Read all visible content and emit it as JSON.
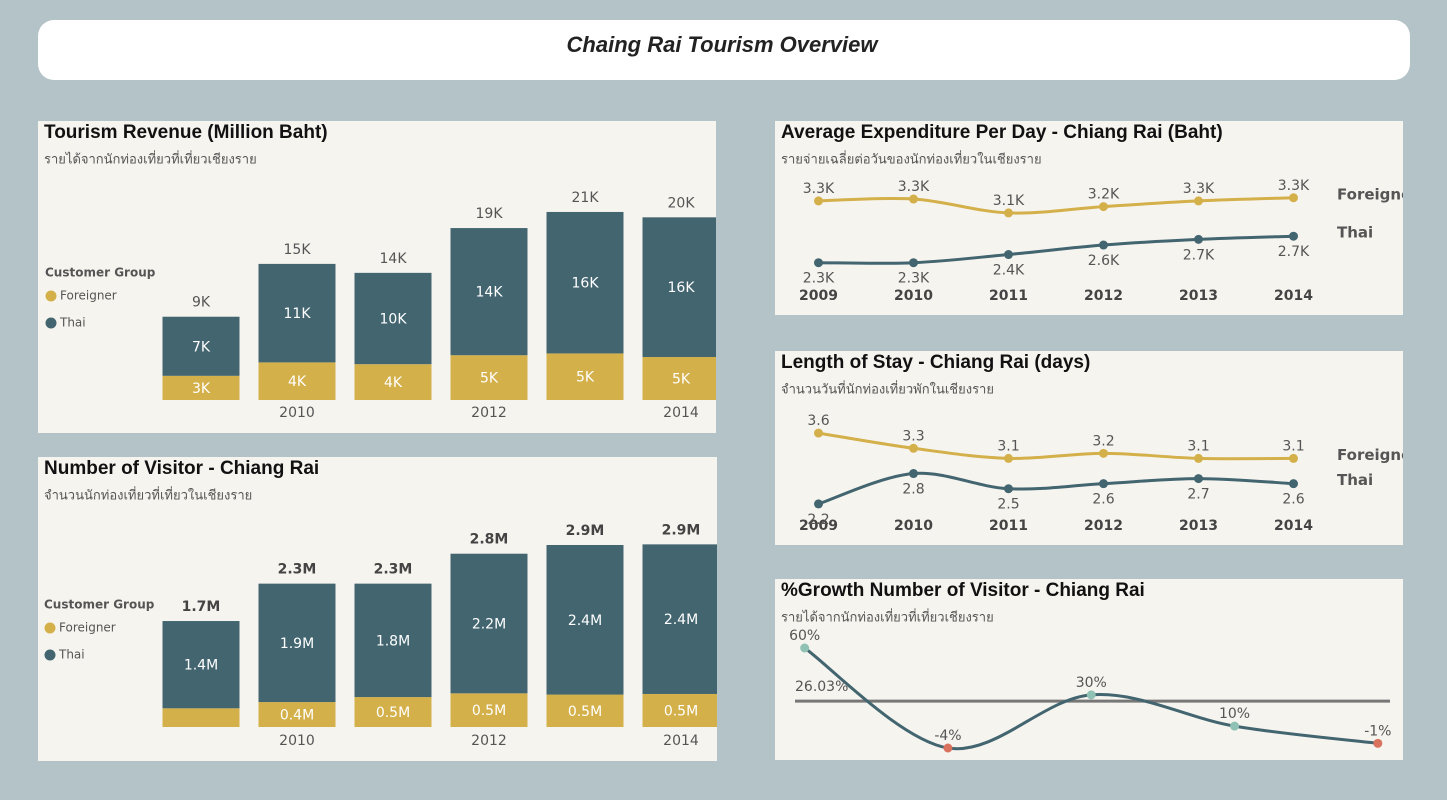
{
  "title": "Chaing Rai Tourism Overview",
  "chart_data": [
    {
      "type": "bar",
      "stacked": true,
      "title": "Tourism Revenue (Million Baht)",
      "subtitle": "รายได้จากนักท่องเที่ยวที่เที่ยวเชียงราย",
      "categories": [
        null,
        "2010",
        null,
        "2012",
        null,
        "2014"
      ],
      "legend_title": "Customer Group",
      "series": [
        {
          "name": "Foreigner",
          "color": "#d4b04a",
          "values": [
            2700,
            4200,
            4000,
            5000,
            5200,
            4800
          ],
          "value_labels": [
            "3K",
            "4K",
            "4K",
            "5K",
            "5K",
            "5K"
          ]
        },
        {
          "name": "Thai",
          "color": "#426570",
          "values": [
            6600,
            11000,
            10200,
            14200,
            15800,
            15600
          ],
          "value_labels": [
            "7K",
            "11K",
            "10K",
            "14K",
            "16K",
            "16K"
          ]
        }
      ],
      "totals": [
        9300,
        15200,
        14200,
        19200,
        21000,
        20400
      ],
      "total_labels": [
        "9K",
        "15K",
        "14K",
        "19K",
        "21K",
        "20K"
      ],
      "ylim": [
        0,
        22000
      ]
    },
    {
      "type": "bar",
      "stacked": true,
      "title": "Number of Visitor - Chiang Rai",
      "subtitle": "จำนวนนักท่องเที่ยวที่เที่ยวในเชียงราย",
      "categories": [
        null,
        "2010",
        null,
        "2012",
        null,
        "2014"
      ],
      "legend_title": "Customer Group",
      "series": [
        {
          "name": "Foreigner",
          "color": "#d4b04a",
          "values": [
            300000,
            400000,
            480000,
            540000,
            520000,
            530000
          ],
          "value_labels": [
            null,
            "0.4M",
            "0.5M",
            "0.5M",
            "0.5M",
            "0.5M"
          ]
        },
        {
          "name": "Thai",
          "color": "#426570",
          "values": [
            1400000,
            1900000,
            1820000,
            2240000,
            2400000,
            2400000
          ],
          "value_labels": [
            "1.4M",
            "1.9M",
            "1.8M",
            "2.2M",
            "2.4M",
            "2.4M"
          ]
        }
      ],
      "totals": [
        1700000,
        2300000,
        2300000,
        2780000,
        2920000,
        2930000
      ],
      "total_labels": [
        "1.7M",
        "2.3M",
        "2.3M",
        "2.8M",
        "2.9M",
        "2.9M"
      ],
      "ylim": [
        0,
        3000000
      ]
    },
    {
      "type": "line",
      "title": "Average Expenditure Per Day - Chiang Rai (Baht)",
      "subtitle": "รายจ่ายเฉลี่ยต่อวันของนักท่องเที่ยวในเชียงราย",
      "categories": [
        "2009",
        "2010",
        "2011",
        "2012",
        "2013",
        "2014"
      ],
      "series": [
        {
          "name": "Foreigner",
          "color": "#d4b04a",
          "values": [
            3270,
            3300,
            3080,
            3180,
            3270,
            3320
          ],
          "value_labels": [
            "3.3K",
            "3.3K",
            "3.1K",
            "3.2K",
            "3.3K",
            "3.3K"
          ]
        },
        {
          "name": "Thai",
          "color": "#426570",
          "values": [
            2290,
            2290,
            2420,
            2570,
            2660,
            2710
          ],
          "value_labels": [
            "2.3K",
            "2.3K",
            "2.4K",
            "2.6K",
            "2.7K",
            "2.7K"
          ]
        }
      ],
      "ylim": [
        2000,
        3500
      ]
    },
    {
      "type": "line",
      "title": "Length of Stay - Chiang Rai (days)",
      "subtitle": "จำนวนวันที่นักท่องเที่ยวพักในเชียงราย",
      "categories": [
        "2009",
        "2010",
        "2011",
        "2012",
        "2013",
        "2014"
      ],
      "series": [
        {
          "name": "Foreigner",
          "color": "#d4b04a",
          "values": [
            3.6,
            3.3,
            3.1,
            3.2,
            3.1,
            3.1
          ]
        },
        {
          "name": "Thai",
          "color": "#426570",
          "values": [
            2.2,
            2.8,
            2.5,
            2.6,
            2.7,
            2.6
          ]
        }
      ],
      "ylim": [
        2,
        3.8
      ]
    },
    {
      "type": "line",
      "title": "%Growth Number of Visitor - Chiang Rai",
      "subtitle": "รายได้จากนักท่องเที่ยวที่เที่ยวเชียงราย",
      "values": [
        60,
        -4,
        30,
        10,
        -1
      ],
      "value_labels": [
        "60%",
        "-4%",
        "30%",
        "10%",
        "-1%"
      ],
      "color": "#426570",
      "positive_color": "#8fc1b5",
      "negative_color": "#d9735e",
      "reference_line": {
        "value": 26.03,
        "label": "26.03%"
      },
      "ylim": [
        -4,
        60
      ]
    }
  ]
}
